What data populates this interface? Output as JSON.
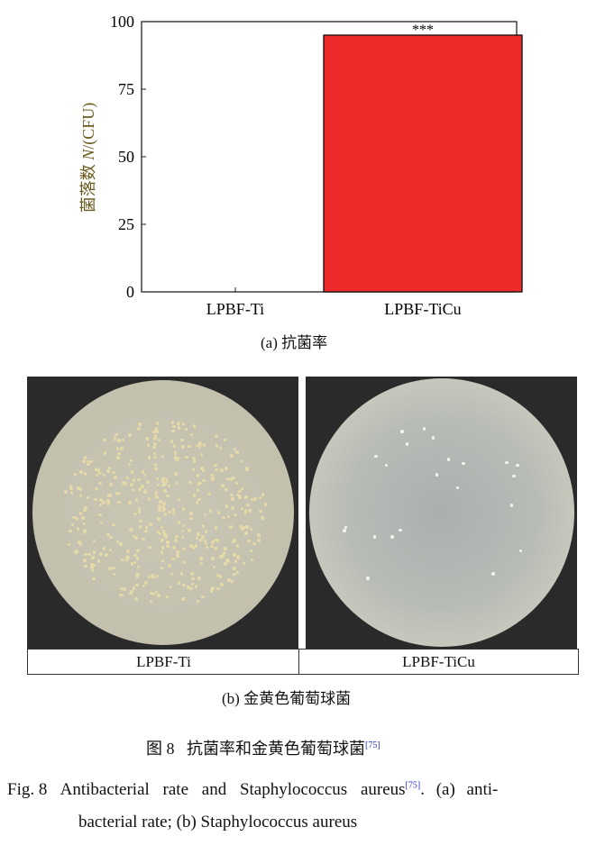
{
  "chart_data": {
    "type": "bar",
    "categories": [
      "LPBF-Ti",
      "LPBF-TiCu"
    ],
    "values": [
      0,
      95
    ],
    "ylabel_cn": "菌落数",
    "ylabel_var": "N",
    "ylabel_unit": "/(CFU)",
    "ylim": [
      0,
      100
    ],
    "yticks": [
      "0",
      "25",
      "50",
      "75",
      "100"
    ],
    "annotation": "***",
    "bar_color": "#ee2a2a",
    "ylabel_color": "#6b5a1e",
    "grid": false
  },
  "panel_a_caption": "(a) 抗菌率",
  "panel_b": {
    "labels": [
      "LPBF-Ti",
      "LPBF-TiCu"
    ],
    "caption": "(b) 金黄色葡萄球菌"
  },
  "figure_caption": {
    "cn_prefix": "图 8",
    "cn_text": "抗菌率和金黄色葡萄球菌",
    "ref": "[75]",
    "en_prefix": "Fig. 8",
    "en_text_1": "Antibacterial rate and Staphylococcus aureus",
    "en_text_2": ". (a) anti-",
    "en_text_3": "bacterial rate; (b) Staphylococcus aureus"
  }
}
